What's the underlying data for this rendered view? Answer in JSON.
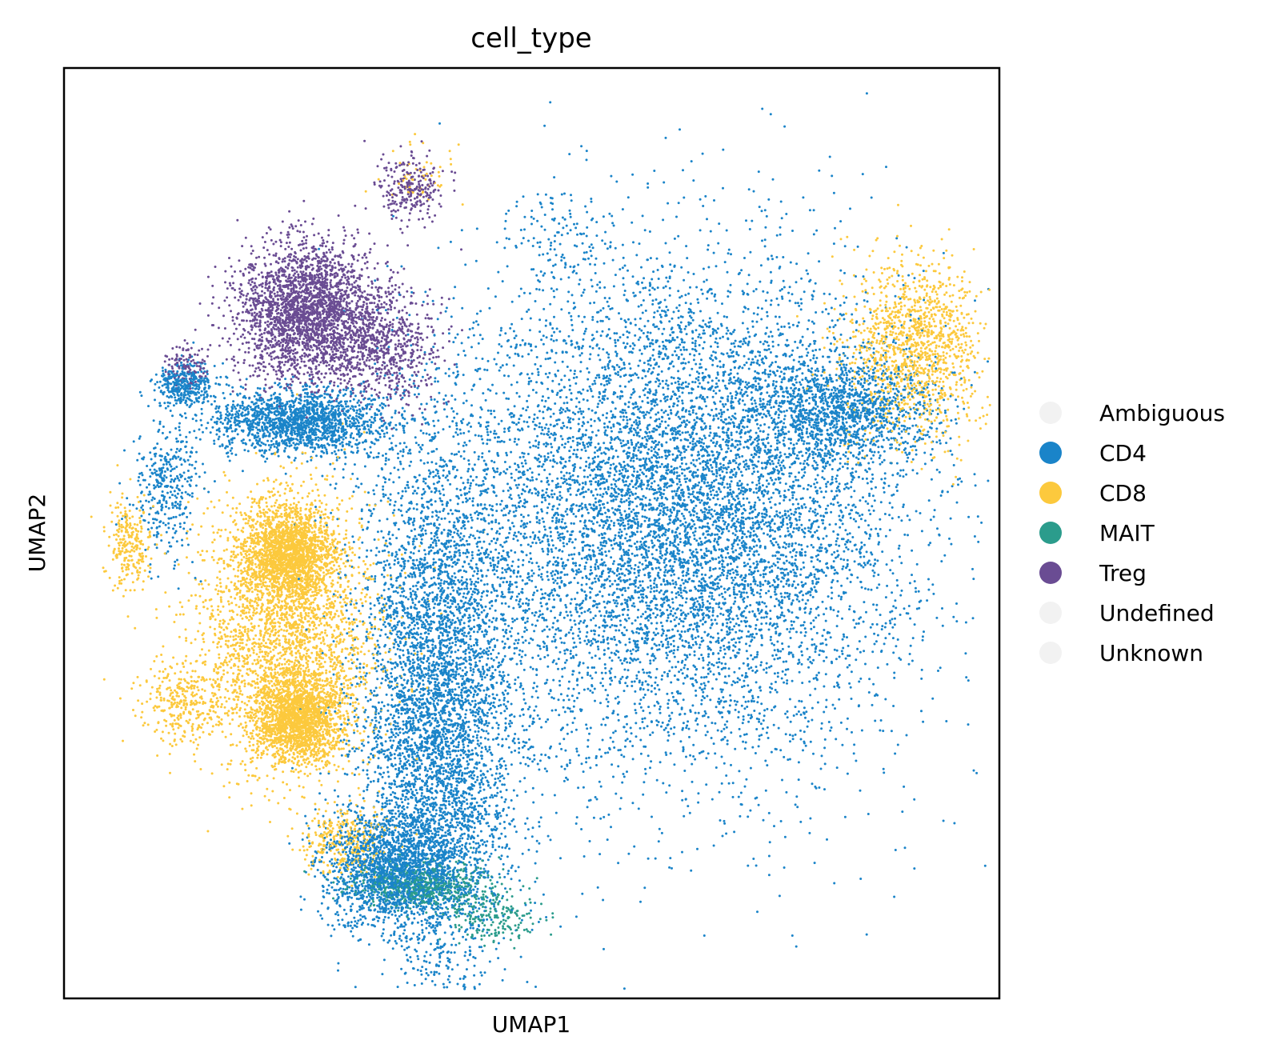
{
  "chart_data": {
    "type": "scatter",
    "title": "cell_type",
    "xlabel": "UMAP1",
    "ylabel": "UMAP2",
    "xticks": [],
    "yticks": [],
    "grid": false,
    "legend_placement": "right",
    "xlim": [
      0,
      100
    ],
    "ylim": [
      0,
      100
    ],
    "categories": [
      "Ambiguous",
      "CD4",
      "CD8",
      "MAIT",
      "Treg",
      "Undefined",
      "Unknown"
    ],
    "colors": {
      "Ambiguous": "#f2f2f2",
      "CD4": "#1a84c9",
      "CD8": "#fcc93d",
      "MAIT": "#2b9c8c",
      "Treg": "#6a4c93",
      "Undefined": "#f2f2f2",
      "Unknown": "#f2f2f2"
    },
    "series": [
      {
        "name": "CD4",
        "clusters": [
          {
            "cx": 66,
            "cy": 52,
            "rx": 20,
            "ry": 22,
            "n": 9000
          },
          {
            "cx": 40,
            "cy": 30,
            "rx": 7,
            "ry": 25,
            "n": 5200
          },
          {
            "cx": 35,
            "cy": 14,
            "rx": 6,
            "ry": 5,
            "n": 1800
          },
          {
            "cx": 25,
            "cy": 62,
            "rx": 8,
            "ry": 3,
            "n": 1700
          },
          {
            "cx": 83,
            "cy": 63,
            "rx": 8,
            "ry": 5,
            "n": 1300
          },
          {
            "cx": 13,
            "cy": 66,
            "rx": 2.5,
            "ry": 2,
            "n": 350
          },
          {
            "cx": 11,
            "cy": 55,
            "rx": 3,
            "ry": 6,
            "n": 350
          },
          {
            "cx": 53,
            "cy": 82,
            "rx": 4,
            "ry": 4,
            "n": 120
          }
        ]
      },
      {
        "name": "CD8",
        "clusters": [
          {
            "cx": 24,
            "cy": 48,
            "rx": 4,
            "ry": 4,
            "n": 1800
          },
          {
            "cx": 25,
            "cy": 30,
            "rx": 4,
            "ry": 4,
            "n": 1800
          },
          {
            "cx": 24,
            "cy": 39,
            "rx": 8,
            "ry": 12,
            "n": 2600
          },
          {
            "cx": 91,
            "cy": 70,
            "rx": 6,
            "ry": 8,
            "n": 1300
          },
          {
            "cx": 13,
            "cy": 32,
            "rx": 4,
            "ry": 4,
            "n": 300
          },
          {
            "cx": 7,
            "cy": 49,
            "rx": 2,
            "ry": 4,
            "n": 250
          },
          {
            "cx": 30,
            "cy": 17,
            "rx": 4,
            "ry": 3,
            "n": 300
          },
          {
            "cx": 38,
            "cy": 88,
            "rx": 3,
            "ry": 3,
            "n": 60
          }
        ]
      },
      {
        "name": "MAIT",
        "clusters": [
          {
            "cx": 38,
            "cy": 12,
            "rx": 6,
            "ry": 2,
            "n": 550
          },
          {
            "cx": 46,
            "cy": 9,
            "rx": 4,
            "ry": 2.5,
            "n": 200
          }
        ]
      },
      {
        "name": "Treg",
        "clusters": [
          {
            "cx": 26,
            "cy": 74,
            "rx": 6,
            "ry": 6,
            "n": 2600
          },
          {
            "cx": 34,
            "cy": 70,
            "rx": 5,
            "ry": 5,
            "n": 700
          },
          {
            "cx": 37,
            "cy": 87,
            "rx": 3,
            "ry": 3,
            "n": 250
          },
          {
            "cx": 13,
            "cy": 68,
            "rx": 2,
            "ry": 2,
            "n": 120
          }
        ]
      }
    ]
  }
}
